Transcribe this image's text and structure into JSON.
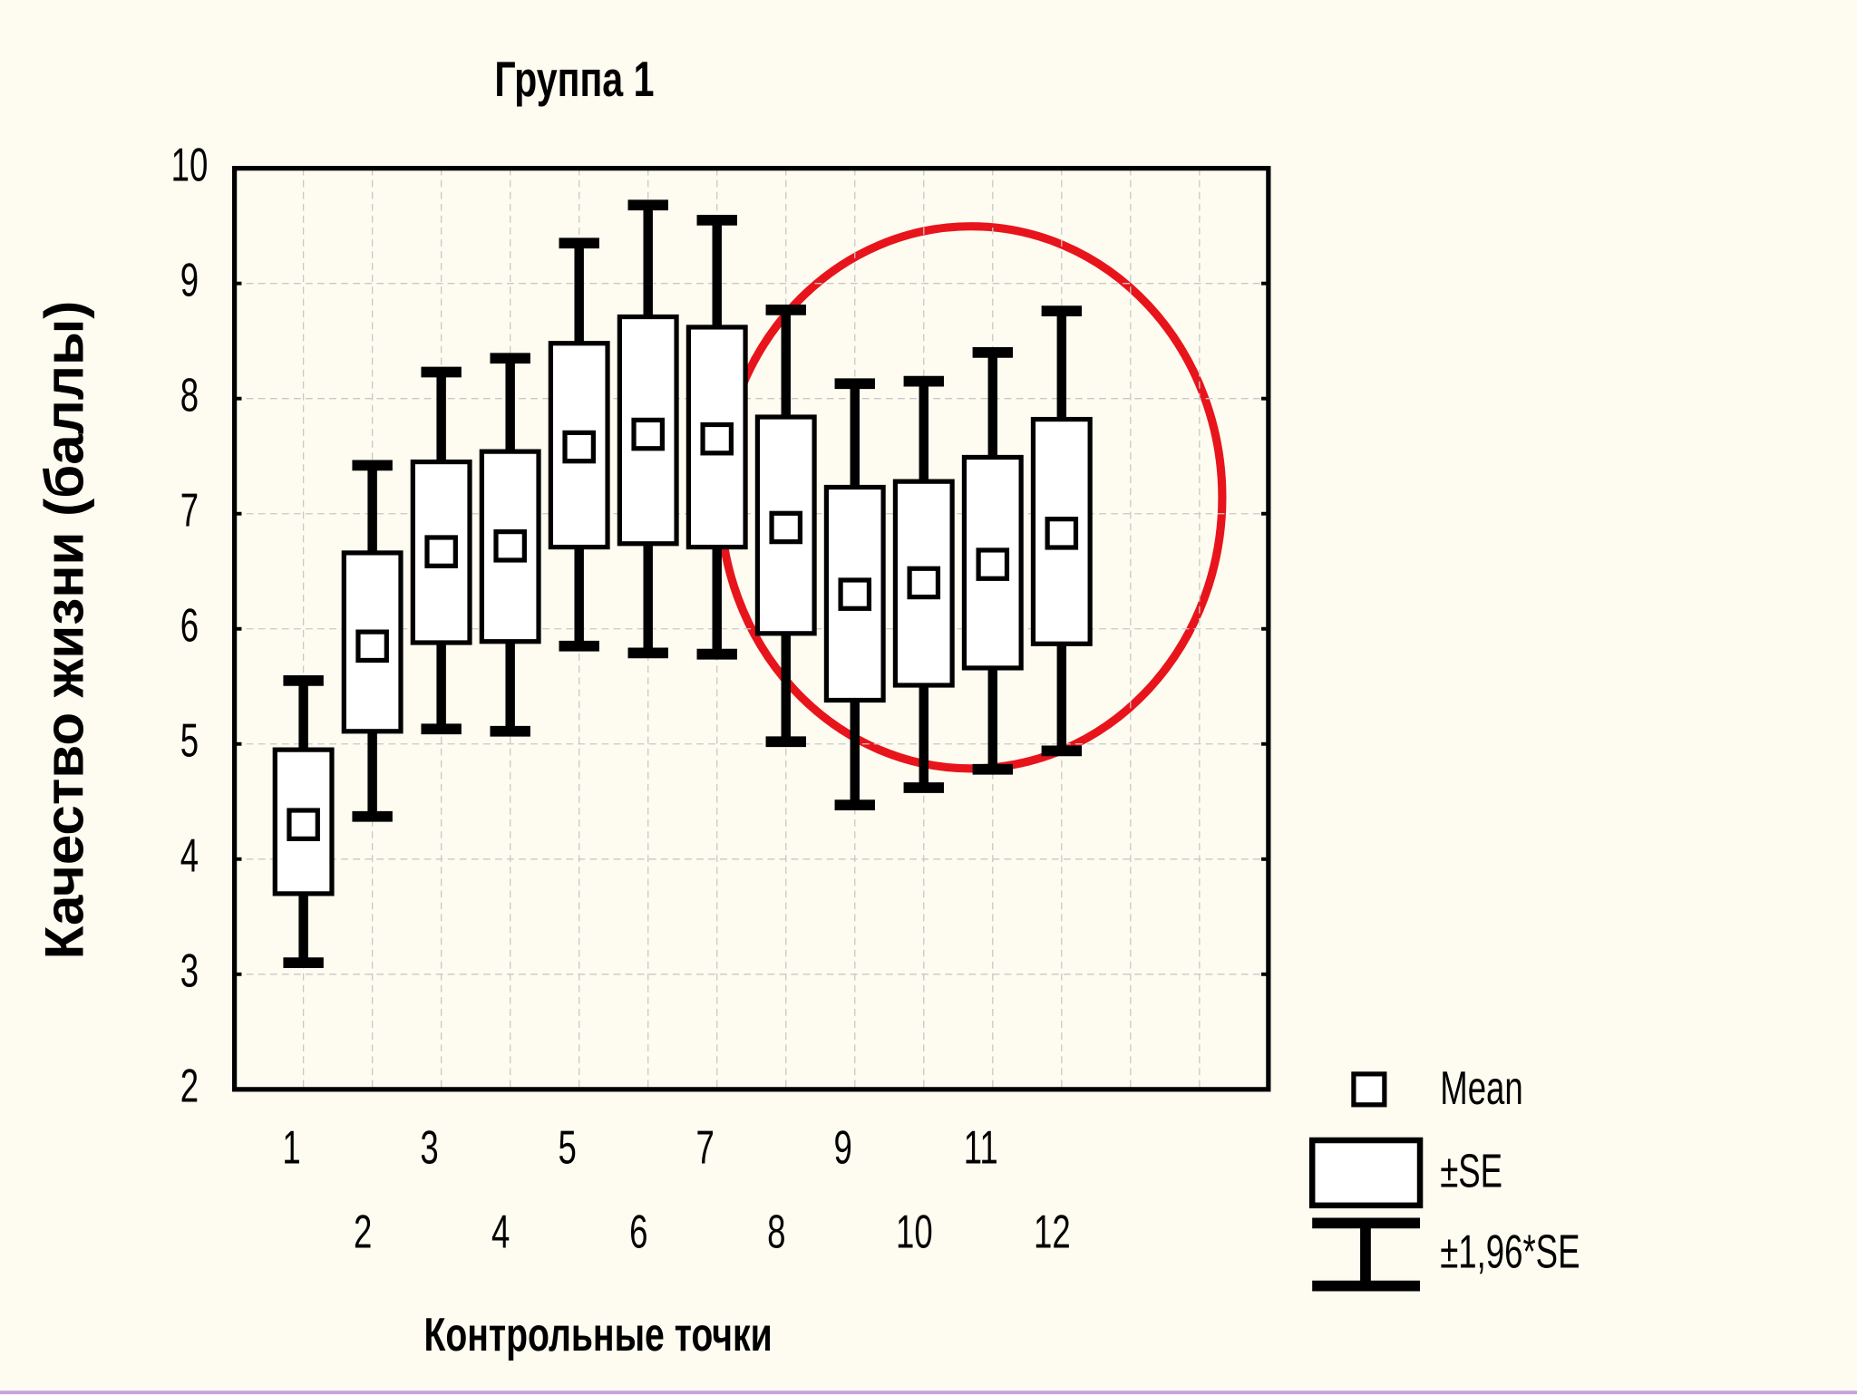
{
  "chart_data": {
    "type": "box",
    "title": "Группа 1",
    "x_label": "Контрольные точки",
    "y_label": "Качество жизни (баллы)",
    "categories": [
      "1",
      "2",
      "3",
      "4",
      "5",
      "6",
      "7",
      "8",
      "9",
      "10",
      "11",
      "12"
    ],
    "xlim": [
      0,
      15
    ],
    "ylim": [
      2,
      10
    ],
    "yticks": [
      2,
      3,
      4,
      5,
      6,
      7,
      8,
      9,
      10
    ],
    "grid": true,
    "series": [
      {
        "name": "Mean",
        "color": "#000000",
        "values": [
          4.3,
          5.85,
          6.67,
          6.72,
          7.58,
          7.69,
          7.65,
          6.88,
          6.3,
          6.4,
          6.56,
          6.83
        ]
      },
      {
        "name": "±SE",
        "color": "#000000",
        "low": [
          3.7,
          5.11,
          5.88,
          5.89,
          6.71,
          6.74,
          6.71,
          5.96,
          5.38,
          5.51,
          5.66,
          5.87
        ],
        "high": [
          4.95,
          6.66,
          7.45,
          7.54,
          8.48,
          8.71,
          8.62,
          7.84,
          7.23,
          7.28,
          7.49,
          7.82
        ]
      },
      {
        "name": "±1,96*SE",
        "color": "#000000",
        "low": [
          3.1,
          4.37,
          5.13,
          5.11,
          5.85,
          5.79,
          5.78,
          5.02,
          4.47,
          4.62,
          4.78,
          4.94
        ],
        "high": [
          5.55,
          7.42,
          8.23,
          8.35,
          9.35,
          9.68,
          9.55,
          8.77,
          8.13,
          8.15,
          8.4,
          8.76
        ]
      }
    ]
  }
}
